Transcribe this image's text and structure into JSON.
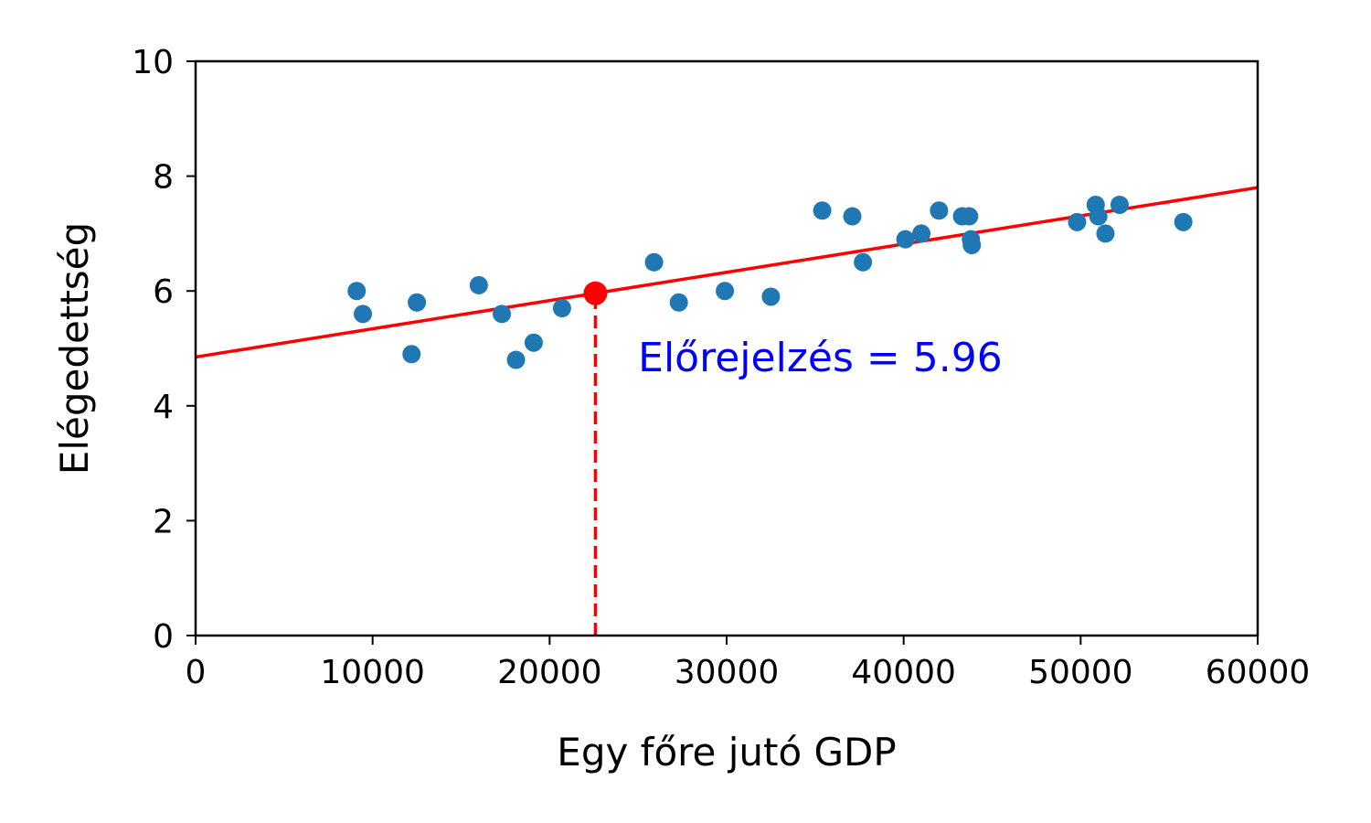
{
  "chart_data": {
    "type": "scatter",
    "title": "",
    "xlabel": "Egy főre jutó GDP",
    "ylabel": "Elégedettség",
    "xlim": [
      0,
      60000
    ],
    "ylim": [
      0,
      10
    ],
    "xticks": [
      0,
      10000,
      20000,
      30000,
      40000,
      50000,
      60000
    ],
    "yticks": [
      0,
      2,
      4,
      6,
      8,
      10
    ],
    "xtick_labels": [
      "0",
      "10000",
      "20000",
      "30000",
      "40000",
      "50000",
      "60000"
    ],
    "ytick_labels": [
      "0",
      "2",
      "4",
      "6",
      "8",
      "10"
    ],
    "grid": false,
    "colors": {
      "points": "#1f77b4",
      "fit_line": "#ff0000",
      "prediction": "#ff0000",
      "annotation": "#0000ff"
    },
    "points": [
      {
        "x": 9100,
        "y": 6.0
      },
      {
        "x": 9450,
        "y": 5.6
      },
      {
        "x": 12200,
        "y": 4.9
      },
      {
        "x": 12500,
        "y": 5.8
      },
      {
        "x": 16000,
        "y": 6.1
      },
      {
        "x": 17300,
        "y": 5.6
      },
      {
        "x": 18100,
        "y": 4.8
      },
      {
        "x": 19100,
        "y": 5.1
      },
      {
        "x": 20700,
        "y": 5.7
      },
      {
        "x": 25900,
        "y": 6.5
      },
      {
        "x": 27300,
        "y": 5.8
      },
      {
        "x": 29900,
        "y": 6.0
      },
      {
        "x": 32500,
        "y": 5.9
      },
      {
        "x": 35400,
        "y": 7.4
      },
      {
        "x": 37100,
        "y": 7.3
      },
      {
        "x": 37700,
        "y": 6.5
      },
      {
        "x": 40100,
        "y": 6.9
      },
      {
        "x": 41000,
        "y": 7.0
      },
      {
        "x": 42000,
        "y": 7.4
      },
      {
        "x": 43300,
        "y": 7.3
      },
      {
        "x": 43700,
        "y": 7.3
      },
      {
        "x": 43800,
        "y": 6.9
      },
      {
        "x": 43850,
        "y": 6.8
      },
      {
        "x": 49800,
        "y": 7.2
      },
      {
        "x": 50850,
        "y": 7.5
      },
      {
        "x": 51000,
        "y": 7.3
      },
      {
        "x": 51400,
        "y": 7.0
      },
      {
        "x": 52200,
        "y": 7.5
      },
      {
        "x": 55800,
        "y": 7.2
      }
    ],
    "fit_line": {
      "x": [
        0,
        60000
      ],
      "y": [
        4.85,
        7.8
      ]
    },
    "prediction": {
      "x": 22587,
      "y": 5.96
    },
    "annotation": {
      "text": "Előrejelzés = 5.96",
      "x": 25000,
      "y": 4.6
    }
  }
}
